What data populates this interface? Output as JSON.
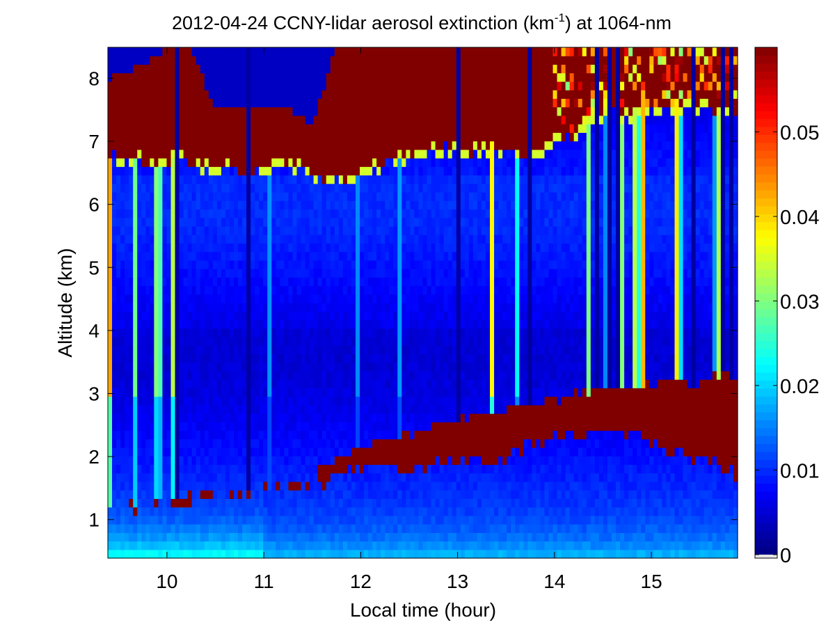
{
  "chart_data": {
    "type": "heatmap",
    "title": {
      "main": "2012-04-24 CCNY-lidar aerosol extinction (km",
      "superscript": "-1",
      "suffix": ") at 1064-nm"
    },
    "xlabel": "Local time (hour)",
    "ylabel": "Altitude (km)",
    "xlim": [
      9.39,
      15.89
    ],
    "ylim": [
      0.39,
      8.49
    ],
    "xticks": [
      "10",
      "11",
      "12",
      "13",
      "14",
      "15"
    ],
    "yticks": [
      "1",
      "2",
      "3",
      "4",
      "5",
      "6",
      "7",
      "8"
    ],
    "colormap": "jet",
    "colorbar": {
      "clim": [
        0,
        0.06
      ],
      "ticks": [
        "0",
        "0.01",
        "0.02",
        "0.03",
        "0.04",
        "0.05"
      ],
      "nan_color": "#e6e6e6"
    },
    "features": {
      "time": [
        9.4,
        9.75,
        10.0,
        10.25,
        10.5,
        10.75,
        11.0,
        11.25,
        11.5,
        11.75,
        12.0,
        12.25,
        12.5,
        12.75,
        13.0,
        13.25,
        13.5,
        13.75,
        14.0,
        14.25,
        14.5,
        14.75,
        15.0,
        15.25,
        15.5,
        15.75,
        15.9
      ],
      "cloud_base_km": [
        6.8,
        6.75,
        6.7,
        6.75,
        6.6,
        6.6,
        6.55,
        6.7,
        6.6,
        6.4,
        6.55,
        6.7,
        6.8,
        6.95,
        6.9,
        6.9,
        6.85,
        6.8,
        7.0,
        7.2,
        7.5,
        7.5,
        7.6,
        7.6,
        7.6,
        7.5,
        7.5
      ],
      "cloud_top_km": [
        8.0,
        8.2,
        8.49,
        8.49,
        7.5,
        7.6,
        7.6,
        7.5,
        7.3,
        8.49,
        8.49,
        8.49,
        8.49,
        8.49,
        8.49,
        8.49,
        8.49,
        8.49,
        8.49,
        8.49,
        8.49,
        8.49,
        8.49,
        8.49,
        8.49,
        8.49,
        8.49
      ],
      "aerosol_layer_base_km": [
        1.2,
        1.2,
        1.25,
        1.3,
        1.4,
        1.45,
        1.5,
        1.5,
        1.55,
        1.7,
        1.8,
        1.85,
        1.8,
        1.9,
        1.9,
        1.95,
        2.0,
        2.2,
        2.3,
        2.35,
        2.4,
        2.35,
        2.2,
        2.1,
        2.0,
        1.8,
        1.7
      ],
      "aerosol_layer_top_km": [
        1.2,
        1.3,
        1.35,
        1.4,
        1.4,
        1.45,
        1.5,
        1.55,
        1.65,
        2.0,
        2.2,
        2.3,
        2.4,
        2.5,
        2.6,
        2.65,
        2.7,
        2.8,
        2.9,
        3.0,
        3.1,
        3.15,
        3.2,
        3.2,
        3.2,
        3.25,
        3.3
      ]
    }
  }
}
